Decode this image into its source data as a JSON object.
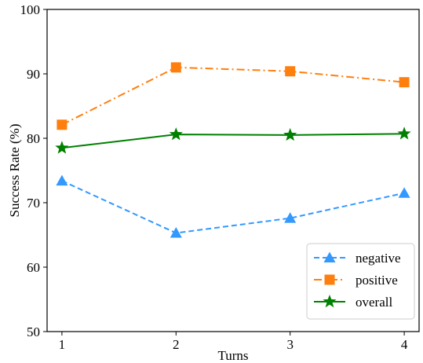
{
  "chart_data": {
    "type": "line",
    "xlabel": "Turns",
    "ylabel": "Success Rate (%)",
    "x": [
      1,
      2,
      3,
      4
    ],
    "xticks": [
      "1",
      "2",
      "3",
      "4"
    ],
    "ylim": [
      50,
      100
    ],
    "yticks": [
      "50",
      "60",
      "70",
      "80",
      "90",
      "100"
    ],
    "grid": false,
    "legend_position": "lower-right",
    "series": [
      {
        "name": "negative",
        "values": [
          73.4,
          65.3,
          67.6,
          71.5
        ],
        "color": "#3399ff",
        "line_style": "dashed",
        "marker": "triangle"
      },
      {
        "name": "positive",
        "values": [
          82.1,
          91.0,
          90.4,
          88.7
        ],
        "color": "#ff7f0e",
        "line_style": "dash-dot",
        "marker": "square"
      },
      {
        "name": "overall",
        "values": [
          78.5,
          80.6,
          80.5,
          80.7
        ],
        "color": "#008000",
        "line_style": "solid",
        "marker": "star"
      }
    ]
  }
}
